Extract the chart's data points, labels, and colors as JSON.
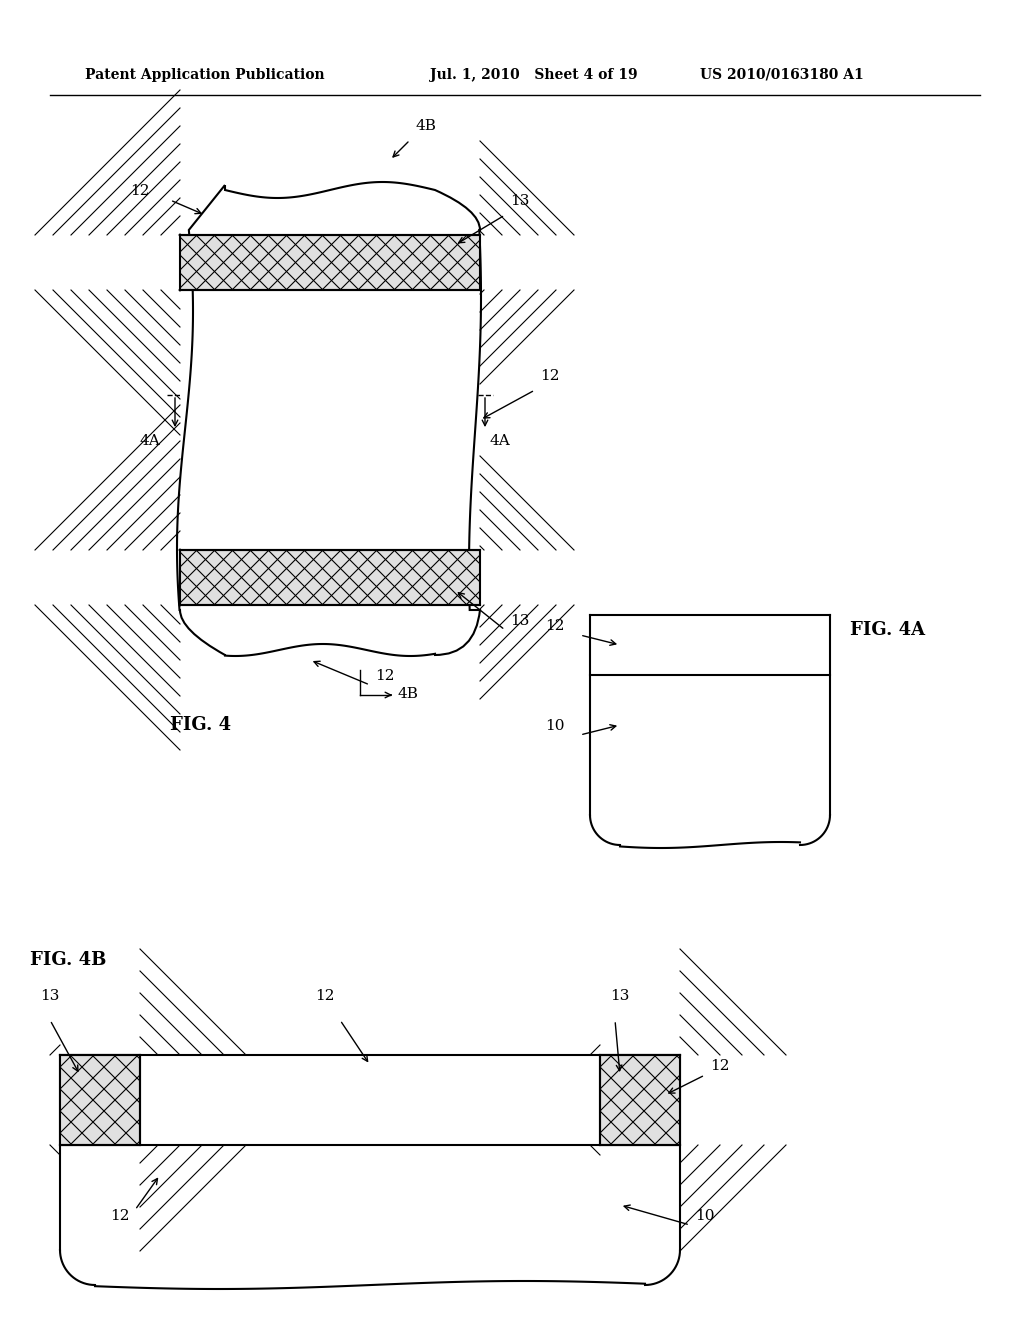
{
  "background_color": "#ffffff",
  "header_left": "Patent Application Publication",
  "header_mid": "Jul. 1, 2010   Sheet 4 of 19",
  "header_right": "US 2010/0163180 A1",
  "fig4_label": "FIG. 4",
  "fig4a_label": "FIG. 4A",
  "fig4b_label": "FIG. 4B",
  "line_color": "#000000",
  "hatch_color": "#000000",
  "label_fontsize": 11,
  "header_fontsize": 10,
  "fig_label_fontsize": 13
}
